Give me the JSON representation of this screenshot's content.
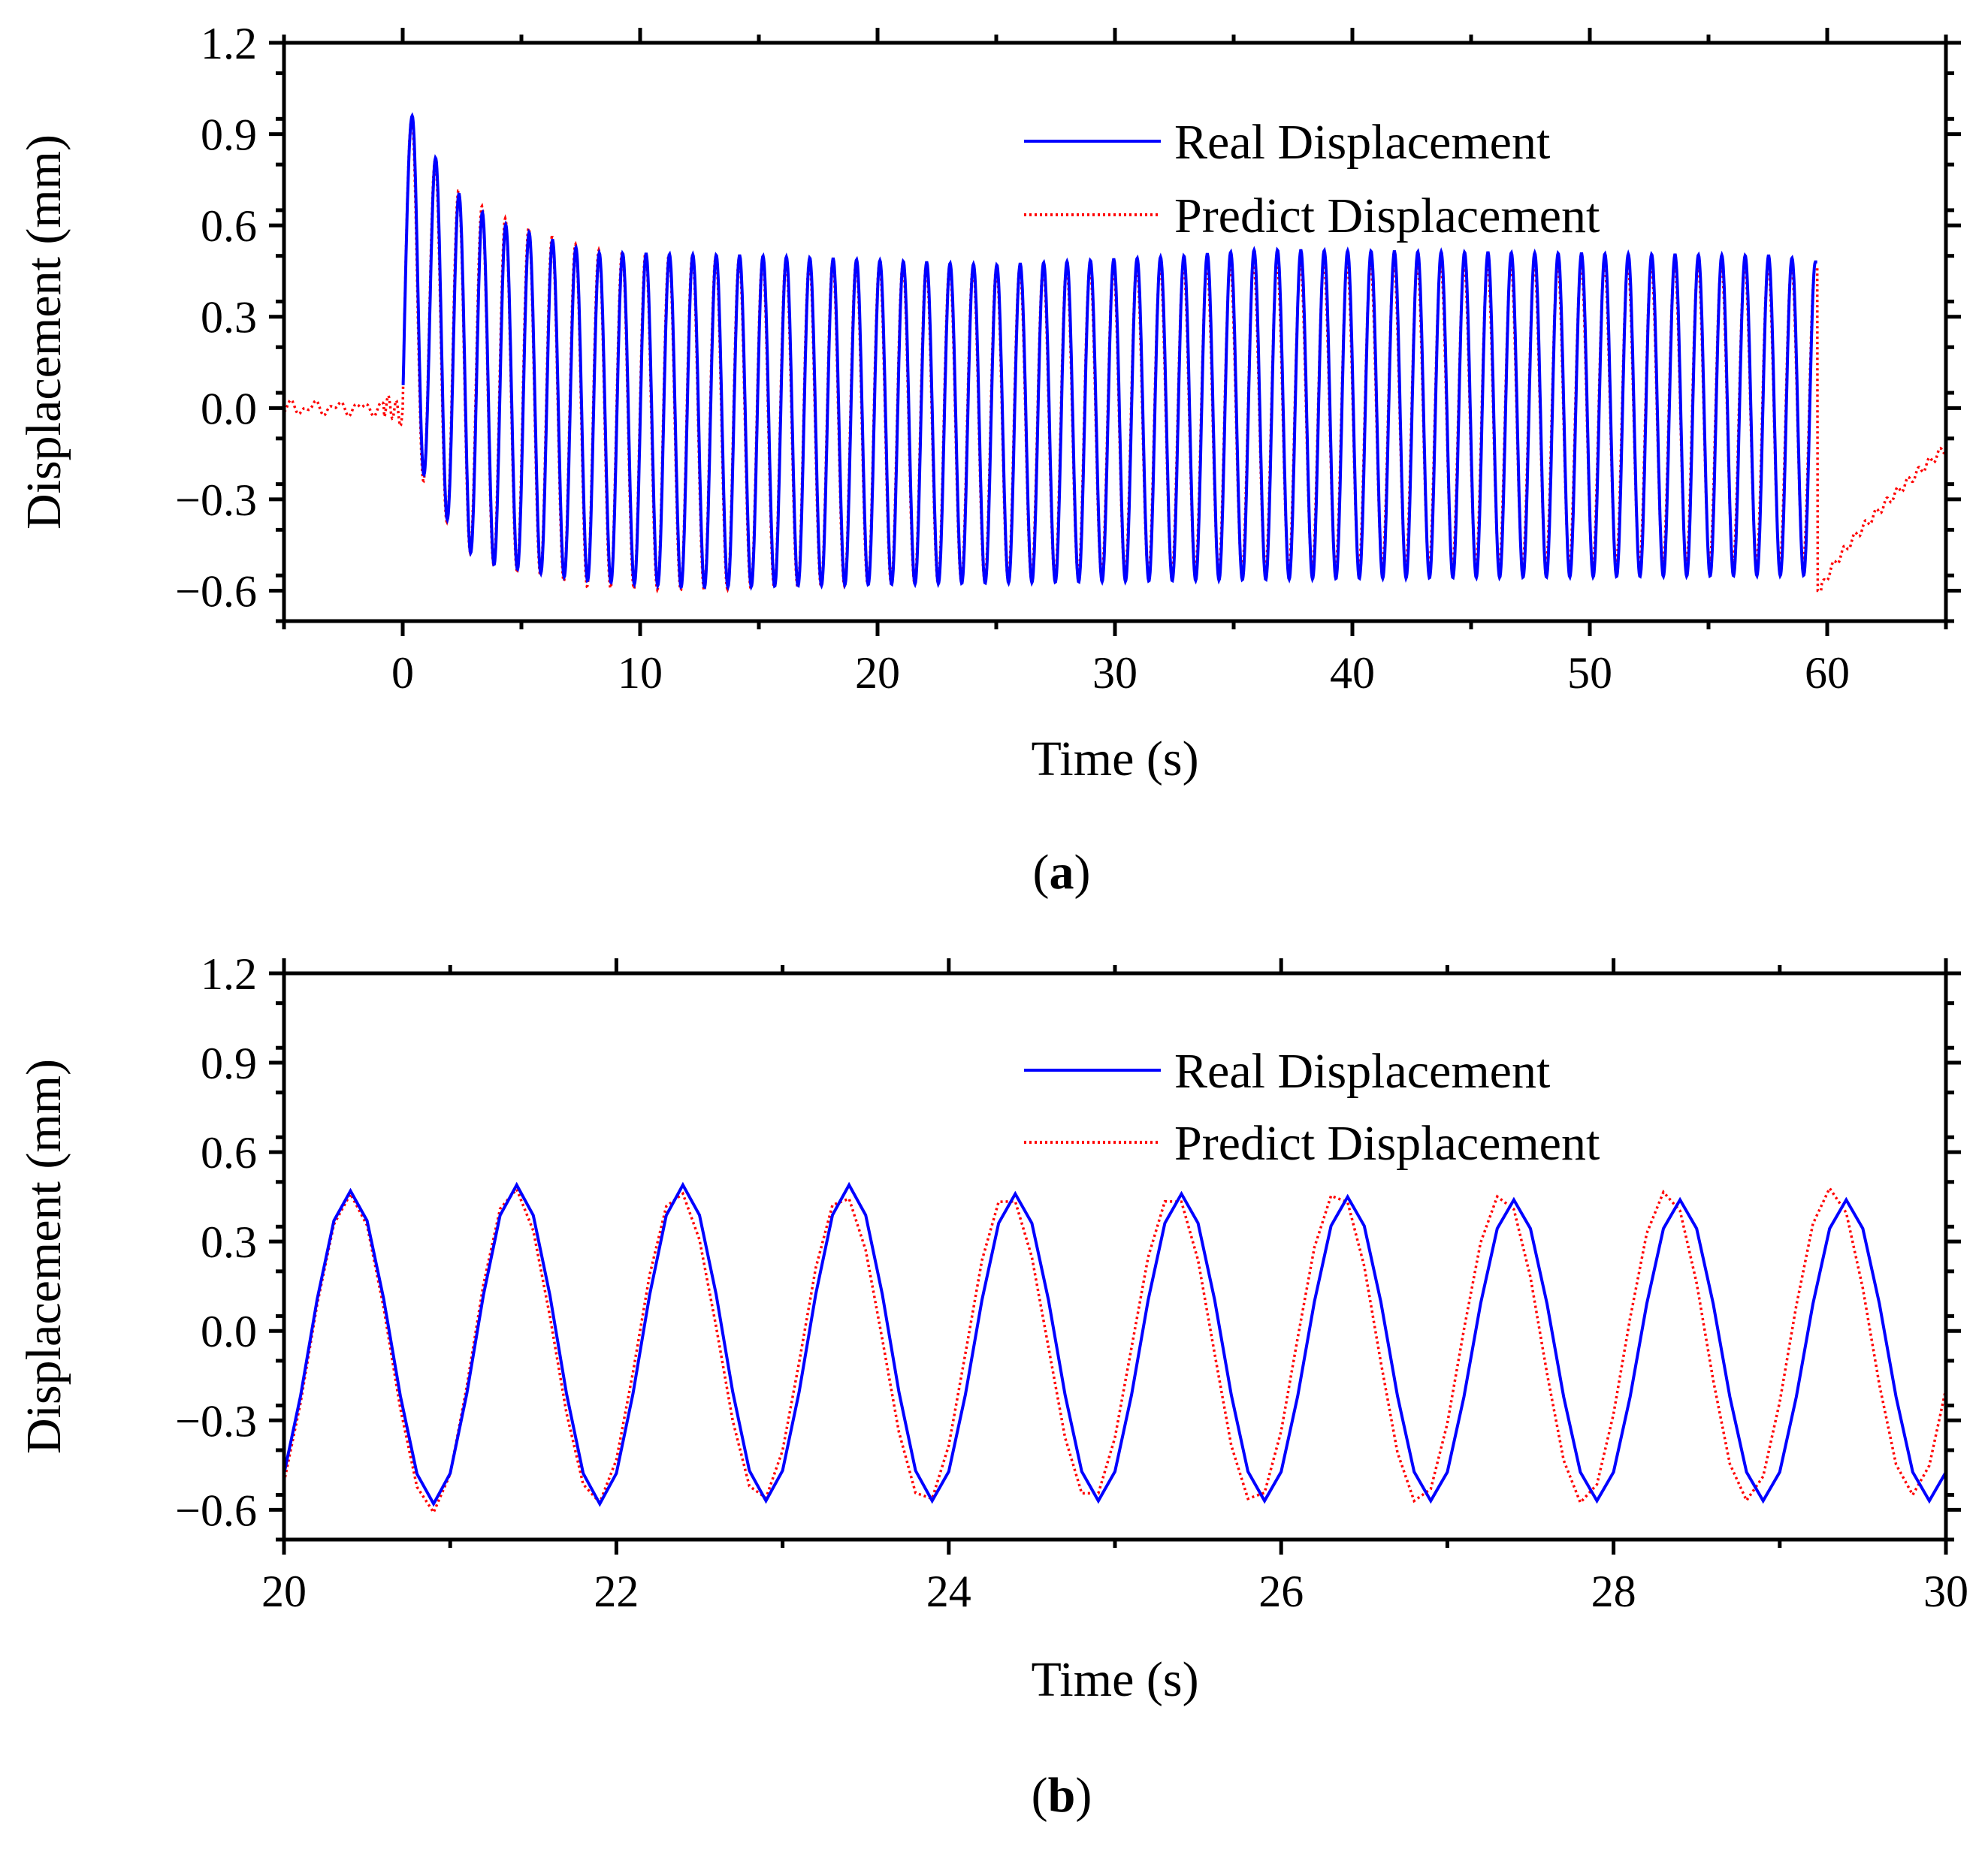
{
  "figure": {
    "panel_a_label": {
      "open": "(",
      "letter": "a",
      "close": ")"
    },
    "panel_b_label": {
      "open": "(",
      "letter": "b",
      "close": ")"
    }
  },
  "colors": {
    "real": "#0000ff",
    "predict": "#ff0000",
    "axes": "#000000"
  },
  "chart_data": [
    {
      "id": "a",
      "type": "line",
      "xlabel": "Time (s)",
      "ylabel": "Displacement (mm)",
      "xlim": [
        -5,
        65
      ],
      "ylim": [
        -0.7,
        1.2
      ],
      "x_ticks": [
        0,
        10,
        20,
        30,
        40,
        50,
        60
      ],
      "x_tick_labels": [
        "0",
        "10",
        "20",
        "30",
        "40",
        "50",
        "60"
      ],
      "y_ticks": [
        -0.6,
        -0.3,
        0.0,
        0.3,
        0.6,
        0.9,
        1.2
      ],
      "y_tick_labels": [
        "−0.6",
        "−0.3",
        "0.0",
        "0.3",
        "0.6",
        "0.9",
        "1.2"
      ],
      "legend": [
        "Real Displacement",
        "Predict Displacement"
      ],
      "legend_position": "top-right",
      "signal": {
        "start_s": 0.0,
        "end_s": 59.6,
        "period_s": 0.985,
        "pred_phase_shift_s": -0.02,
        "pre_event_noise_s": [
          -5,
          0
        ],
        "post_event_decay_s": [
          60,
          65
        ],
        "real_peak_envelope": [
          [
            0.4,
            0.96
          ],
          [
            1.4,
            0.82
          ],
          [
            2.4,
            0.7
          ],
          [
            3.4,
            0.64
          ],
          [
            4.4,
            0.6
          ],
          [
            6,
            0.56
          ],
          [
            8,
            0.51
          ],
          [
            15,
            0.5
          ],
          [
            25,
            0.47
          ],
          [
            33,
            0.5
          ],
          [
            36,
            0.52
          ],
          [
            58,
            0.5
          ],
          [
            59.5,
            0.48
          ]
        ],
        "real_trough_envelope": [
          [
            0.9,
            -0.22
          ],
          [
            1.9,
            -0.37
          ],
          [
            2.9,
            -0.48
          ],
          [
            4,
            -0.52
          ],
          [
            8,
            -0.57
          ],
          [
            12,
            -0.59
          ],
          [
            20,
            -0.58
          ],
          [
            40,
            -0.56
          ],
          [
            59,
            -0.55
          ]
        ],
        "pred_peak_envelope": [
          [
            0.4,
            0.95
          ],
          [
            1.4,
            0.81
          ],
          [
            2.4,
            0.71
          ],
          [
            3.4,
            0.66
          ],
          [
            4.4,
            0.62
          ],
          [
            6,
            0.57
          ],
          [
            8,
            0.52
          ],
          [
            15,
            0.49
          ],
          [
            25,
            0.46
          ],
          [
            35,
            0.47
          ],
          [
            58,
            0.47
          ],
          [
            59.5,
            0.46
          ]
        ],
        "pred_trough_envelope": [
          [
            0.9,
            -0.24
          ],
          [
            1.9,
            -0.38
          ],
          [
            2.9,
            -0.48
          ],
          [
            4,
            -0.52
          ],
          [
            8,
            -0.59
          ],
          [
            12,
            -0.6
          ],
          [
            20,
            -0.58
          ],
          [
            40,
            -0.52
          ],
          [
            59,
            -0.5
          ]
        ],
        "end_dip_mm": -0.6,
        "end_value_mm": -0.13
      }
    },
    {
      "id": "b",
      "type": "line",
      "xlabel": "Time (s)",
      "ylabel": "Displacement (mm)",
      "xlim": [
        20,
        30
      ],
      "ylim": [
        -0.7,
        1.2
      ],
      "x_ticks": [
        20,
        22,
        24,
        26,
        28,
        30
      ],
      "x_tick_labels": [
        "20",
        "22",
        "24",
        "26",
        "28",
        "30"
      ],
      "y_ticks": [
        -0.6,
        -0.3,
        0.0,
        0.3,
        0.6,
        0.9,
        1.2
      ],
      "y_tick_labels": [
        "−0.6",
        "−0.3",
        "0.0",
        "0.3",
        "0.6",
        "0.9",
        "1.2"
      ],
      "legend": [
        "Real Displacement",
        "Predict Displacement"
      ],
      "legend_position": "top-right",
      "series": [
        {
          "name": "Real Displacement",
          "style": "solid",
          "peaks": [
            [
              20.4,
              0.47
            ],
            [
              21.4,
              0.49
            ],
            [
              22.4,
              0.49
            ],
            [
              23.4,
              0.49
            ],
            [
              24.4,
              0.46
            ],
            [
              25.4,
              0.46
            ],
            [
              26.4,
              0.45
            ],
            [
              27.4,
              0.44
            ],
            [
              28.4,
              0.44
            ],
            [
              29.4,
              0.44
            ]
          ],
          "troughs": [
            [
              20.9,
              -0.58
            ],
            [
              21.9,
              -0.58
            ],
            [
              22.9,
              -0.57
            ],
            [
              23.9,
              -0.57
            ],
            [
              24.9,
              -0.57
            ],
            [
              25.9,
              -0.57
            ],
            [
              26.9,
              -0.57
            ],
            [
              27.9,
              -0.57
            ],
            [
              28.9,
              -0.57
            ],
            [
              29.9,
              -0.57
            ]
          ]
        },
        {
          "name": "Predict Displacement",
          "style": "dotted",
          "peaks": [
            [
              20.4,
              0.46
            ],
            [
              21.38,
              0.48
            ],
            [
              22.37,
              0.47
            ],
            [
              23.36,
              0.46
            ],
            [
              24.35,
              0.46
            ],
            [
              25.35,
              0.46
            ],
            [
              26.34,
              0.47
            ],
            [
              27.33,
              0.46
            ],
            [
              28.32,
              0.47
            ],
            [
              29.31,
              0.48
            ]
          ],
          "troughs": [
            [
              20.89,
              -0.61
            ],
            [
              21.88,
              -0.58
            ],
            [
              22.87,
              -0.57
            ],
            [
              23.86,
              -0.58
            ],
            [
              24.85,
              -0.57
            ],
            [
              25.84,
              -0.58
            ],
            [
              26.83,
              -0.58
            ],
            [
              27.82,
              -0.58
            ],
            [
              28.81,
              -0.57
            ],
            [
              29.8,
              -0.55
            ]
          ]
        }
      ]
    }
  ]
}
